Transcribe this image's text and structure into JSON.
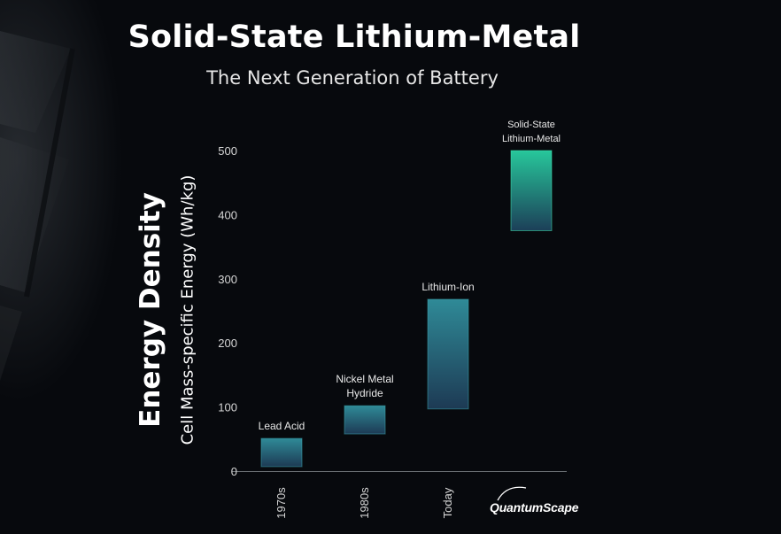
{
  "title": "Solid-State Lithium-Metal",
  "subtitle": "The Next Generation of Battery",
  "logo_text": "QuantumScape",
  "chart_data": {
    "type": "bar",
    "ylabel": "Energy Density",
    "ylabel_sub": "Cell Mass-specific Energy (Wh/kg)",
    "ylim": [
      0,
      500
    ],
    "yticks": [
      0,
      100,
      200,
      300,
      400,
      500
    ],
    "grid": false,
    "categories": [
      "1970s",
      "1980s",
      "Today",
      ""
    ],
    "series": [
      {
        "label_lines": [
          "Lead Acid"
        ],
        "low": 7,
        "high": 51
      },
      {
        "label_lines": [
          "Nickel Metal",
          "Hydride"
        ],
        "low": 58,
        "high": 102
      },
      {
        "label_lines": [
          "Lithium-Ion"
        ],
        "low": 97,
        "high": 268
      },
      {
        "label_lines": [
          "Solid-State",
          "Lithium-Metal"
        ],
        "low": 375,
        "high": 500
      }
    ],
    "colors": {
      "bar_top": "#2f8a97",
      "bar_bottom": "#1d3a54",
      "ss_top": "#27c79b",
      "ss_bottom": "#1c3f58"
    }
  }
}
